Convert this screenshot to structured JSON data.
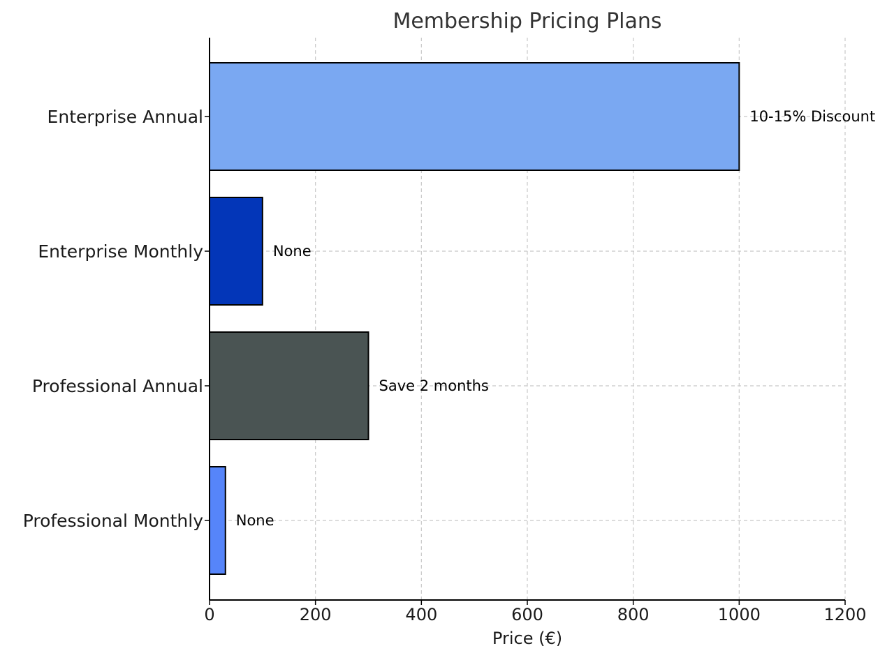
{
  "chart_data": {
    "type": "bar",
    "orientation": "horizontal",
    "title": "Membership Pricing Plans",
    "xlabel": "Price (€)",
    "ylabel": "",
    "xlim": [
      0,
      1200
    ],
    "xticks": [
      0,
      200,
      400,
      600,
      800,
      1000,
      1200
    ],
    "grid": true,
    "categories": [
      "Enterprise Annual",
      "Enterprise Monthly",
      "Professional Annual",
      "Professional Monthly"
    ],
    "values": [
      1000,
      100,
      300,
      30
    ],
    "data_labels": [
      "10-15% Discount",
      "None",
      "Save 2 months",
      "None"
    ],
    "colors": [
      "#7aa8f2",
      "#0336b8",
      "#4a5453",
      "#5685fa"
    ]
  }
}
